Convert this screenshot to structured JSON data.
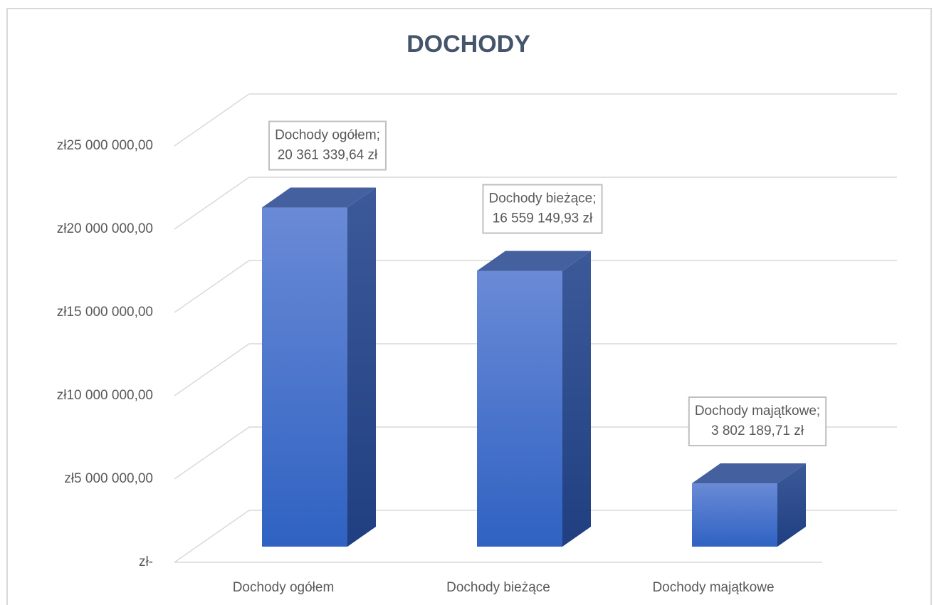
{
  "chart_data": {
    "type": "bar3d",
    "title": "DOCHODY",
    "categories": [
      "Dochody ogółem",
      "Dochody bieżące",
      "Dochody majątkowe"
    ],
    "values": [
      20361339.64,
      16559149.93,
      3802189.71
    ],
    "label_names": [
      "Dochody ogółem;",
      "Dochody bieżące;",
      "Dochody majątkowe;"
    ],
    "value_labels": [
      "20 361 339,64 zł",
      "16 559 149,93 zł",
      "3 802 189,71 zł"
    ],
    "color": "#3a6bcc",
    "ylim": [
      0,
      25000000
    ],
    "yticks": [
      {
        "value": 0,
        "label": "zł-"
      },
      {
        "value": 5000000,
        "label": "zł5 000 000,00"
      },
      {
        "value": 10000000,
        "label": "zł10 000 000,00"
      },
      {
        "value": 15000000,
        "label": "zł15 000 000,00"
      },
      {
        "value": 20000000,
        "label": "zł20 000 000,00"
      },
      {
        "value": 25000000,
        "label": "zł25 000 000,00"
      }
    ],
    "grid": true
  }
}
